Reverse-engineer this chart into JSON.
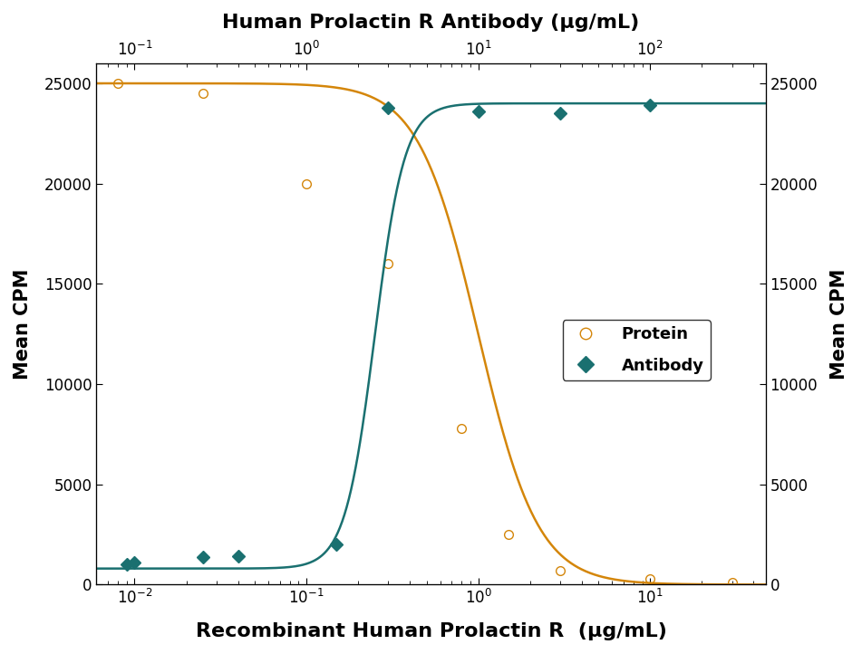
{
  "title_top": "Human Prolactin R Antibody (μg/mL)",
  "title_bottom": "Recombinant Human Prolactin R  (μg/mL)",
  "ylabel_left": "Mean CPM",
  "ylabel_right": "Mean CPM",
  "orange_color": "#D4860A",
  "teal_color": "#1A7070",
  "background_color": "#FFFFFF",
  "protein_x": [
    0.008,
    0.025,
    0.1,
    0.3,
    0.8,
    1.5,
    3.0,
    10.0,
    30.0
  ],
  "protein_y": [
    25000,
    24500,
    20000,
    16000,
    7800,
    2500,
    700,
    300,
    100
  ],
  "antibody_x": [
    0.09,
    0.25,
    0.1,
    0.4,
    1.5,
    3.0,
    10.0,
    30.0,
    100.0
  ],
  "antibody_y": [
    1000,
    1350,
    1100,
    1400,
    2000,
    23800,
    23600,
    23500,
    23900
  ],
  "protein_xlim": [
    0.006,
    47.0
  ],
  "antibody_xlim": [
    0.06,
    470.0
  ],
  "ylim": [
    0,
    26000
  ],
  "yticks": [
    0,
    5000,
    10000,
    15000,
    20000,
    25000
  ],
  "legend_labels": [
    "Protein",
    "Antibody"
  ]
}
